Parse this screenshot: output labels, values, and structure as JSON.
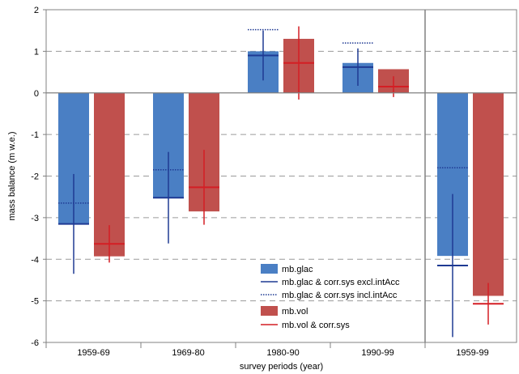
{
  "chart_data": {
    "type": "bar",
    "title": "",
    "xlabel": "survey periods (year)",
    "ylabel": "mass balance (m w.e.)",
    "ylim": [
      -6,
      2
    ],
    "yticks": [
      "2",
      "1",
      "0",
      "-1",
      "-2",
      "-3",
      "-4",
      "-5",
      "-6"
    ],
    "grid": "horizontal dashed",
    "categories": [
      "1959-69",
      "1969-80",
      "1980-90",
      "1990-99",
      "1959-99"
    ],
    "series": [
      {
        "name": "mb.glac",
        "color": "#4a7fc4",
        "values": [
          -3.15,
          -2.52,
          1.0,
          0.72,
          -3.92
        ],
        "corr_excl": [
          -3.15,
          -2.52,
          0.9,
          0.62,
          -4.15
        ],
        "corr_excl_err": [
          1.2,
          1.1,
          0.6,
          0.45,
          1.72
        ],
        "corr_incl": [
          -2.65,
          -1.85,
          1.52,
          1.2,
          -1.8
        ]
      },
      {
        "name": "mb.vol",
        "color": "#c0504d",
        "values": [
          -3.93,
          -2.85,
          1.3,
          0.57,
          -4.88
        ],
        "corr": [
          -3.63,
          -2.27,
          0.72,
          0.15,
          -5.07
        ],
        "corr_err": [
          0.45,
          0.9,
          0.88,
          0.25,
          0.5
        ]
      }
    ],
    "legend_position": "lower-center",
    "legend": {
      "entries": [
        "mb.glac",
        "mb.glac & corr.sys excl.intAcc",
        "mb.glac & corr.sys incl.intAcc",
        "mb.vol",
        "mb.vol & corr.sys"
      ]
    }
  }
}
